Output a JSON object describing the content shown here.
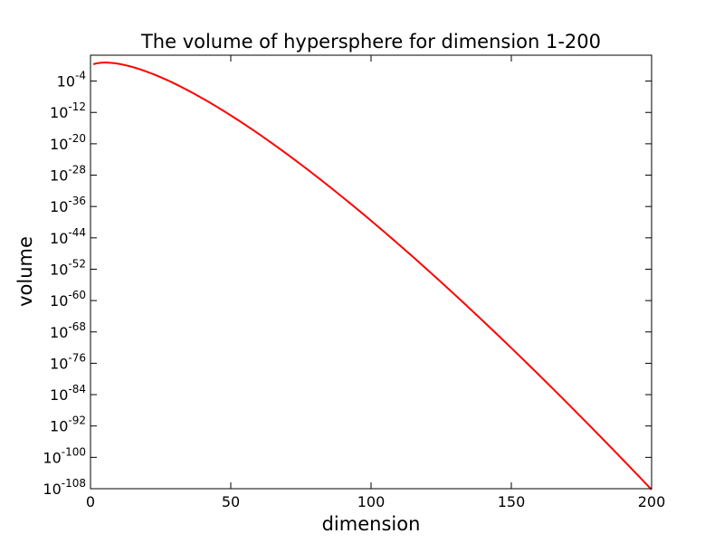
{
  "chart_data": {
    "type": "line",
    "title": "The volume of hypersphere for dimension 1-200",
    "xlabel": "dimension",
    "ylabel": "volume",
    "xlim": [
      0,
      200
    ],
    "ylim_exponent": [
      -108,
      2.6
    ],
    "yscale": "log",
    "grid": false,
    "x_ticks": [
      0,
      50,
      100,
      150,
      200
    ],
    "y_tick_labels": [
      {
        "base": "10",
        "exp": "-4"
      },
      {
        "base": "10",
        "exp": "-12"
      },
      {
        "base": "10",
        "exp": "-20"
      },
      {
        "base": "10",
        "exp": "-28"
      },
      {
        "base": "10",
        "exp": "-36"
      },
      {
        "base": "10",
        "exp": "-44"
      },
      {
        "base": "10",
        "exp": "-52"
      },
      {
        "base": "10",
        "exp": "-60"
      },
      {
        "base": "10",
        "exp": "-68"
      },
      {
        "base": "10",
        "exp": "-76"
      },
      {
        "base": "10",
        "exp": "-84"
      },
      {
        "base": "10",
        "exp": "-92"
      },
      {
        "base": "10",
        "exp": "-100"
      },
      {
        "base": "10",
        "exp": "-108"
      }
    ],
    "series": [
      {
        "color": "#ff0000",
        "formula": "pi^(n/2) / Gamma(n/2 + 1)",
        "x_range": [
          1,
          200
        ]
      }
    ]
  }
}
